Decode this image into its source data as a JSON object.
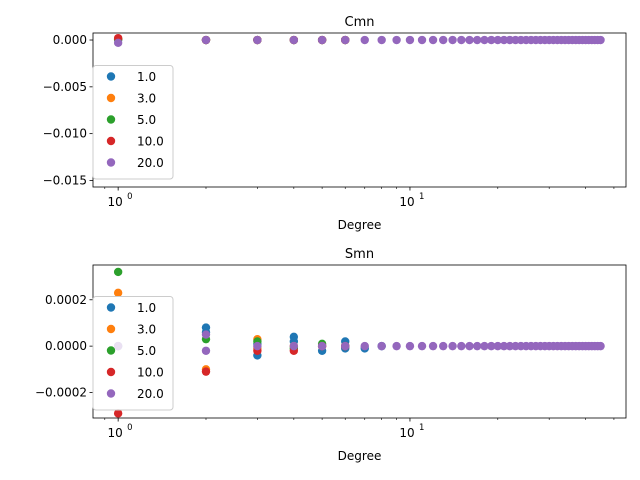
{
  "chart_data": [
    {
      "type": "scatter",
      "title": "Cmn",
      "xlabel": "Degree",
      "ylabel": "",
      "xscale": "log",
      "xlim": [
        0.82,
        55
      ],
      "ylim": [
        -0.0157,
        0.00075
      ],
      "xticks": [
        {
          "value": 1,
          "label": "10",
          "exp": "0"
        },
        {
          "value": 10,
          "label": "10",
          "exp": "1"
        }
      ],
      "yticks": [
        {
          "value": 0.0,
          "label": "0.000"
        },
        {
          "value": -0.005,
          "label": "−0.005"
        },
        {
          "value": -0.01,
          "label": "−0.010"
        },
        {
          "value": -0.015,
          "label": "−0.015"
        }
      ],
      "legend_loc": "lower left",
      "series": [
        {
          "name": "1.0",
          "color": "#1f77b4",
          "points": [
            [
              1,
              0.0
            ],
            [
              2,
              0.0
            ],
            [
              3,
              0.0
            ],
            [
              4,
              0.0
            ],
            [
              5,
              0.0
            ],
            [
              6,
              0.0
            ]
          ]
        },
        {
          "name": "3.0",
          "color": "#ff7f0e",
          "points": [
            [
              1,
              0.0001
            ],
            [
              2,
              0.0
            ],
            [
              3,
              0.0
            ],
            [
              4,
              0.0
            ],
            [
              5,
              0.0
            ],
            [
              6,
              0.0
            ]
          ]
        },
        {
          "name": "5.0",
          "color": "#2ca02c",
          "points": [
            [
              1,
              0.0001
            ],
            [
              2,
              0.0
            ],
            [
              3,
              0.0
            ],
            [
              4,
              0.0
            ],
            [
              5,
              0.0
            ],
            [
              6,
              0.0
            ]
          ]
        },
        {
          "name": "10.0",
          "color": "#d62728",
          "points": [
            [
              1,
              0.0002
            ],
            [
              2,
              0.0
            ],
            [
              3,
              0.0
            ],
            [
              4,
              0.0
            ],
            [
              5,
              0.0
            ],
            [
              6,
              0.0
            ]
          ]
        },
        {
          "name": "20.0",
          "color": "#9467bd",
          "points": [
            [
              1,
              -0.0003
            ],
            [
              2,
              0.0
            ],
            [
              3,
              0.0
            ],
            [
              4,
              0.0
            ],
            [
              5,
              0.0
            ],
            [
              6,
              0.0
            ],
            [
              7,
              0.0
            ],
            [
              8,
              0.0
            ],
            [
              9,
              0.0
            ],
            [
              10,
              0.0
            ],
            [
              11,
              0.0
            ],
            [
              12,
              0.0
            ],
            [
              13,
              0.0
            ],
            [
              14,
              0.0
            ],
            [
              15,
              0.0
            ],
            [
              16,
              0.0
            ],
            [
              17,
              0.0
            ],
            [
              18,
              0.0
            ],
            [
              19,
              0.0
            ],
            [
              20,
              0.0
            ],
            [
              21,
              0.0
            ],
            [
              22,
              0.0
            ],
            [
              23,
              0.0
            ],
            [
              24,
              0.0
            ],
            [
              25,
              0.0
            ],
            [
              26,
              0.0
            ],
            [
              27,
              0.0
            ],
            [
              28,
              0.0
            ],
            [
              29,
              0.0
            ],
            [
              30,
              0.0
            ],
            [
              31,
              0.0
            ],
            [
              32,
              0.0
            ],
            [
              33,
              0.0
            ],
            [
              34,
              0.0
            ],
            [
              35,
              0.0
            ],
            [
              36,
              0.0
            ],
            [
              37,
              0.0
            ],
            [
              38,
              0.0
            ],
            [
              39,
              0.0
            ],
            [
              40,
              0.0
            ],
            [
              41,
              0.0
            ],
            [
              42,
              0.0
            ],
            [
              43,
              0.0
            ],
            [
              44,
              0.0
            ],
            [
              45,
              0.0
            ]
          ]
        }
      ]
    },
    {
      "type": "scatter",
      "title": "Smn",
      "xlabel": "Degree",
      "ylabel": "",
      "xscale": "log",
      "xlim": [
        0.82,
        55
      ],
      "ylim": [
        -0.00031,
        0.00035
      ],
      "xticks": [
        {
          "value": 1,
          "label": "10",
          "exp": "0"
        },
        {
          "value": 10,
          "label": "10",
          "exp": "1"
        }
      ],
      "yticks": [
        {
          "value": 0.0002,
          "label": "0.0002"
        },
        {
          "value": 0.0,
          "label": "0.0000"
        },
        {
          "value": -0.0002,
          "label": "−0.0002"
        }
      ],
      "legend_loc": "lower left",
      "series": [
        {
          "name": "1.0",
          "color": "#1f77b4",
          "points": [
            [
              1,
              0.0
            ],
            [
              2,
              8e-05
            ],
            [
              2,
              6e-05
            ],
            [
              3,
              -4e-05
            ],
            [
              3,
              1e-05
            ],
            [
              4,
              4e-05
            ],
            [
              4,
              2e-05
            ],
            [
              5,
              -2e-05
            ],
            [
              6,
              2e-05
            ],
            [
              6,
              -1e-05
            ],
            [
              7,
              -1e-05
            ],
            [
              8,
              0.0
            ]
          ]
        },
        {
          "name": "3.0",
          "color": "#ff7f0e",
          "points": [
            [
              1,
              0.00023
            ],
            [
              2,
              -0.0001
            ],
            [
              3,
              3e-05
            ],
            [
              3,
              -1e-05
            ],
            [
              4,
              0.0
            ],
            [
              5,
              0.0
            ],
            [
              6,
              0.0
            ]
          ]
        },
        {
          "name": "5.0",
          "color": "#2ca02c",
          "points": [
            [
              1,
              0.00032
            ],
            [
              2,
              3e-05
            ],
            [
              3,
              2e-05
            ],
            [
              4,
              -1e-05
            ],
            [
              5,
              1e-05
            ],
            [
              6,
              0.0
            ]
          ]
        },
        {
          "name": "10.0",
          "color": "#d62728",
          "points": [
            [
              1,
              -0.00029
            ],
            [
              2,
              -0.00011
            ],
            [
              3,
              -2e-05
            ],
            [
              4,
              -2e-05
            ],
            [
              5,
              0.0
            ],
            [
              6,
              0.0
            ]
          ]
        },
        {
          "name": "20.0",
          "color": "#9467bd",
          "points": [
            [
              1,
              0.0
            ],
            [
              2,
              -2e-05
            ],
            [
              2,
              5e-05
            ],
            [
              3,
              0.0
            ],
            [
              4,
              0.0
            ],
            [
              5,
              0.0
            ],
            [
              6,
              0.0
            ],
            [
              7,
              0.0
            ],
            [
              8,
              0.0
            ],
            [
              9,
              0.0
            ],
            [
              10,
              0.0
            ],
            [
              11,
              0.0
            ],
            [
              12,
              0.0
            ],
            [
              13,
              0.0
            ],
            [
              14,
              0.0
            ],
            [
              15,
              0.0
            ],
            [
              16,
              0.0
            ],
            [
              17,
              0.0
            ],
            [
              18,
              0.0
            ],
            [
              19,
              0.0
            ],
            [
              20,
              0.0
            ],
            [
              21,
              0.0
            ],
            [
              22,
              0.0
            ],
            [
              23,
              0.0
            ],
            [
              24,
              0.0
            ],
            [
              25,
              0.0
            ],
            [
              26,
              0.0
            ],
            [
              27,
              0.0
            ],
            [
              28,
              0.0
            ],
            [
              29,
              0.0
            ],
            [
              30,
              0.0
            ],
            [
              31,
              0.0
            ],
            [
              32,
              0.0
            ],
            [
              33,
              0.0
            ],
            [
              34,
              0.0
            ],
            [
              35,
              0.0
            ],
            [
              36,
              0.0
            ],
            [
              37,
              0.0
            ],
            [
              38,
              0.0
            ],
            [
              39,
              0.0
            ],
            [
              40,
              0.0
            ],
            [
              41,
              0.0
            ],
            [
              42,
              0.0
            ],
            [
              43,
              0.0
            ],
            [
              44,
              0.0
            ],
            [
              45,
              0.0
            ]
          ]
        }
      ]
    }
  ]
}
